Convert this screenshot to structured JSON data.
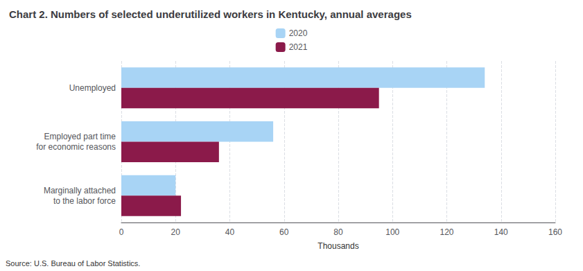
{
  "chart_data": {
    "type": "bar",
    "orientation": "horizontal",
    "title": "Chart 2. Numbers of selected underutilized workers in Kentucky, annual averages",
    "categories": [
      "Unemployed",
      "Employed part time\nfor economic reasons",
      "Marginally attached\nto the labor force"
    ],
    "series": [
      {
        "name": "2020",
        "color": "#a8d4f5",
        "values": [
          134,
          56,
          20
        ]
      },
      {
        "name": "2021",
        "color": "#8b1a4a",
        "values": [
          95,
          36,
          22
        ]
      }
    ],
    "xlabel": "Thousands",
    "xlim": [
      0,
      160
    ],
    "xticks": [
      0,
      20,
      40,
      60,
      80,
      100,
      120,
      140,
      160
    ],
    "grid": true,
    "legend": "top",
    "source": "Source: U.S. Bureau of Labor Statistics."
  }
}
